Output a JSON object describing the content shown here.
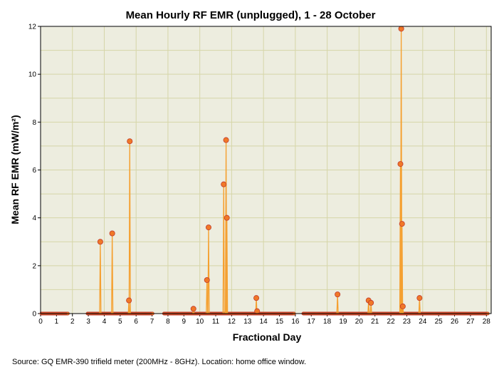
{
  "chart_data": {
    "type": "line",
    "title": "Mean Hourly RF EMR (unplugged), 1 - 28 October",
    "xlabel": "Fractional Day",
    "ylabel": "Mean RF EMR (mW/m²)",
    "xlim": [
      0,
      28.3
    ],
    "ylim": [
      0,
      12
    ],
    "xticks": [
      0,
      1,
      2,
      3,
      4,
      5,
      6,
      7,
      8,
      9,
      10,
      11,
      12,
      13,
      14,
      15,
      16,
      17,
      18,
      19,
      20,
      21,
      22,
      23,
      24,
      25,
      26,
      27,
      28
    ],
    "yticks": [
      0,
      2,
      4,
      6,
      8,
      10,
      12
    ],
    "grid": true,
    "line_color": "#f5a030",
    "marker_color": "#f07828",
    "marker_edge": "#c0392b",
    "background": "#ededdf",
    "gridline_color": "#d6d6a8",
    "segments": [
      {
        "x": [
          0.05,
          1.75
        ],
        "baseline": 0
      },
      {
        "x": [
          2.95,
          7.05
        ],
        "baseline": 0
      },
      {
        "x": [
          7.75,
          15.95
        ],
        "baseline": 0
      },
      {
        "x": [
          16.5,
          28.1
        ],
        "baseline": 0
      }
    ],
    "series": [
      {
        "points": [
          {
            "x": 3.75,
            "y": 3.0
          },
          {
            "x": 4.5,
            "y": 3.35
          },
          {
            "x": 5.55,
            "y": 0.55
          },
          {
            "x": 5.6,
            "y": 7.2
          },
          {
            "x": 9.6,
            "y": 0.2
          },
          {
            "x": 10.45,
            "y": 1.4
          },
          {
            "x": 10.55,
            "y": 3.6
          },
          {
            "x": 11.5,
            "y": 5.4
          },
          {
            "x": 11.65,
            "y": 7.25
          },
          {
            "x": 11.7,
            "y": 4.0
          },
          {
            "x": 13.55,
            "y": 0.65
          },
          {
            "x": 13.6,
            "y": 0.1
          },
          {
            "x": 18.65,
            "y": 0.8
          },
          {
            "x": 20.6,
            "y": 0.55
          },
          {
            "x": 20.75,
            "y": 0.45
          },
          {
            "x": 22.6,
            "y": 6.25
          },
          {
            "x": 22.65,
            "y": 11.9
          },
          {
            "x": 22.7,
            "y": 3.75
          },
          {
            "x": 22.75,
            "y": 0.3
          },
          {
            "x": 23.8,
            "y": 0.65
          }
        ]
      }
    ]
  },
  "footer": {
    "source": "Source: GQ EMR-390 trifield meter (200MHz - 8GHz). Location: home office window."
  }
}
